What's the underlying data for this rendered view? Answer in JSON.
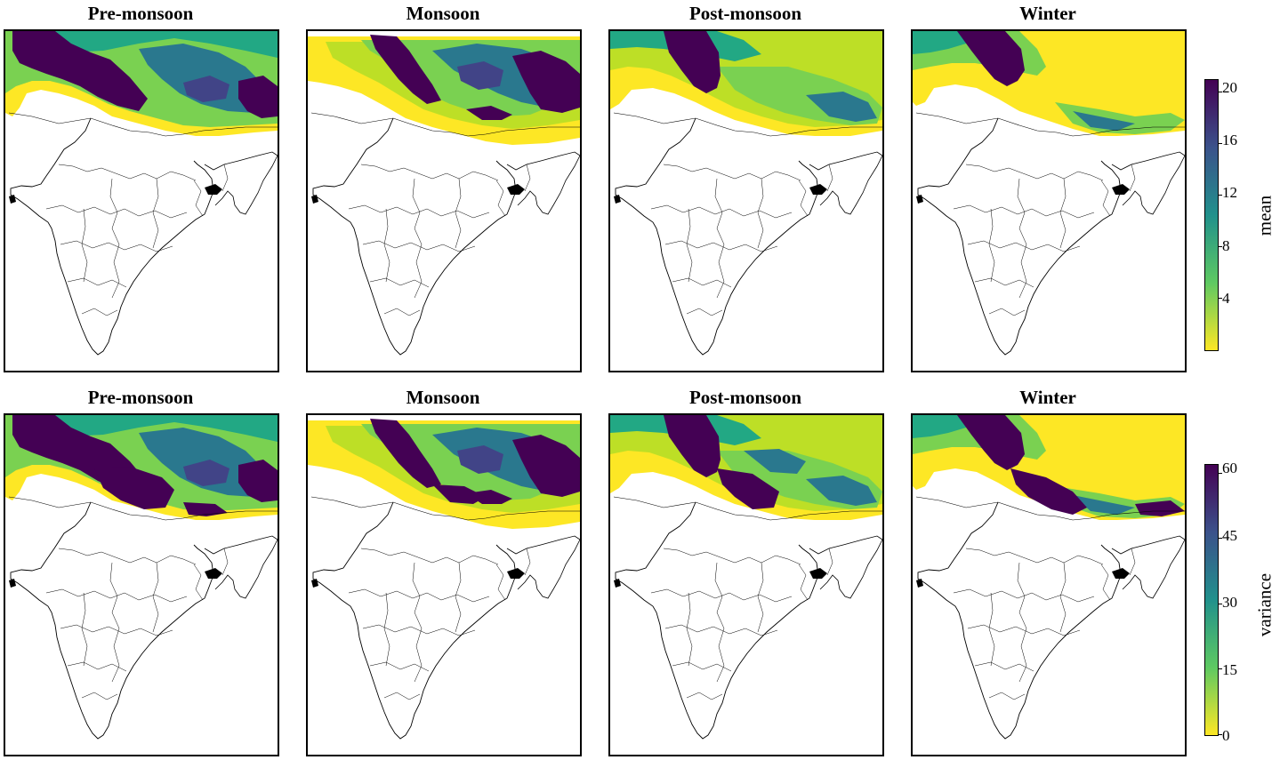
{
  "rows": [
    {
      "id": "mean",
      "panels": [
        {
          "title": "Pre-monsoon",
          "pattern": "pre"
        },
        {
          "title": "Monsoon",
          "pattern": "mon"
        },
        {
          "title": "Post-monsoon",
          "pattern": "post"
        },
        {
          "title": "Winter",
          "pattern": "win"
        }
      ],
      "colorbar": {
        "label": "mean",
        "ticks": [
          "20",
          "16",
          "12",
          "8",
          "4"
        ],
        "range": [
          0,
          21
        ]
      }
    },
    {
      "id": "variance",
      "panels": [
        {
          "title": "Pre-monsoon",
          "pattern": "pre"
        },
        {
          "title": "Monsoon",
          "pattern": "mon"
        },
        {
          "title": "Post-monsoon",
          "pattern": "post"
        },
        {
          "title": "Winter",
          "pattern": "win"
        }
      ],
      "colorbar": {
        "label": "variance",
        "ticks": [
          "60",
          "45",
          "30",
          "15",
          "0"
        ],
        "range": [
          0,
          62
        ]
      }
    }
  ],
  "colormap": {
    "name": "viridis_r",
    "colors": [
      "#fde725",
      "#5ec962",
      "#21918c",
      "#3b528b",
      "#440154"
    ]
  }
}
